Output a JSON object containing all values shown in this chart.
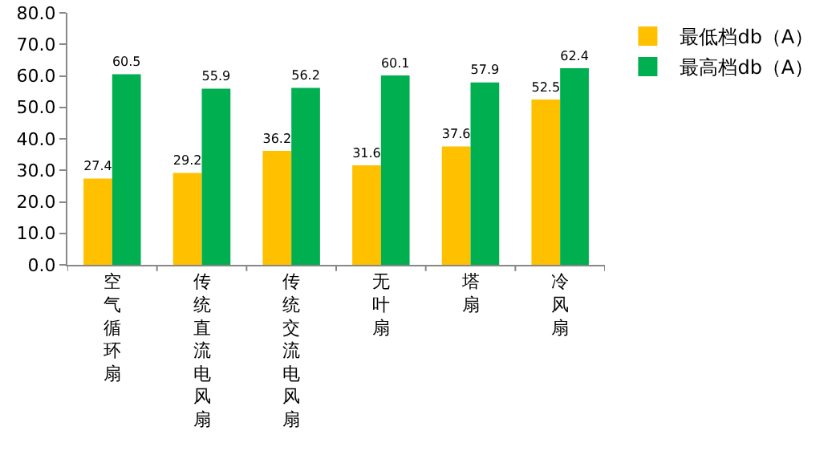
{
  "chart_data": {
    "type": "bar",
    "categories": [
      "空气循环扇",
      "传统直流电风扇",
      "传统交流电风扇",
      "无叶扇",
      "塔扇",
      "冷风扇"
    ],
    "series": [
      {
        "name": "最低档db（A）",
        "color": "#ffc000",
        "values": [
          27.4,
          29.2,
          36.2,
          31.6,
          37.6,
          52.5
        ]
      },
      {
        "name": "最高档db（A）",
        "color": "#00b050",
        "values": [
          60.5,
          55.9,
          56.2,
          60.1,
          57.9,
          62.4
        ]
      }
    ],
    "ylim": [
      0,
      80
    ],
    "yticks": [
      {
        "value": 0,
        "label": "0.0"
      },
      {
        "value": 10,
        "label": "10.0"
      },
      {
        "value": 20,
        "label": "20.0"
      },
      {
        "value": 30,
        "label": "30.0"
      },
      {
        "value": 40,
        "label": "40.0"
      },
      {
        "value": 50,
        "label": "50.0"
      },
      {
        "value": 60,
        "label": "60.0"
      },
      {
        "value": 70,
        "label": "70.0"
      },
      {
        "value": 80,
        "label": "80.0"
      }
    ],
    "data_labels": true,
    "grid": false,
    "legend": "top right"
  }
}
